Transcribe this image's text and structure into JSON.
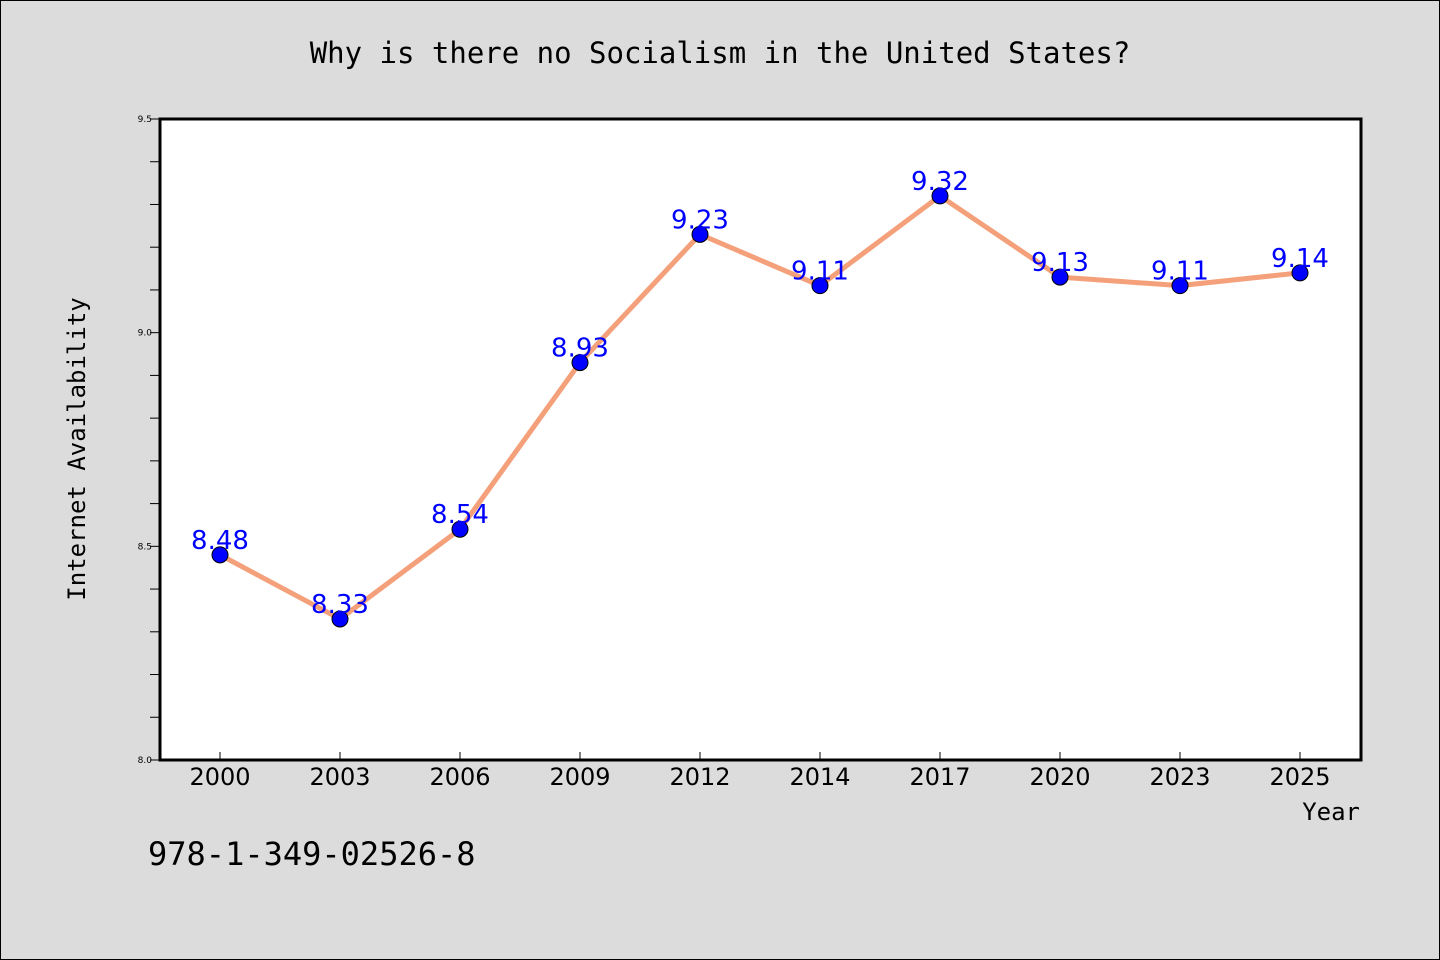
{
  "chart_data": {
    "type": "line",
    "title": "Why is there no Socialism in the United States?",
    "xlabel": "Year",
    "ylabel": "Internet Availability",
    "categories": [
      "2000",
      "2003",
      "2006",
      "2009",
      "2012",
      "2014",
      "2017",
      "2020",
      "2023",
      "2025"
    ],
    "values": [
      8.48,
      8.33,
      8.54,
      8.93,
      9.23,
      9.11,
      9.32,
      9.13,
      9.11,
      9.14
    ],
    "data_labels": [
      "8.48",
      "8.33",
      "8.54",
      "8.93",
      "9.23",
      "9.11",
      "9.32",
      "9.13",
      "9.11",
      "9.14"
    ],
    "ylim": [
      8.0,
      9.5
    ],
    "yticks": [
      8.0,
      8.5,
      9.0,
      9.5
    ],
    "ytick_labels": [
      "8.0",
      "8.5",
      "9.0",
      "9.5"
    ],
    "grid": false,
    "line_color": "#f4a07a",
    "marker_color": "#0000ff",
    "label_color": "#0000ff"
  },
  "footer": {
    "isbn": "978-1-349-02526-8"
  }
}
